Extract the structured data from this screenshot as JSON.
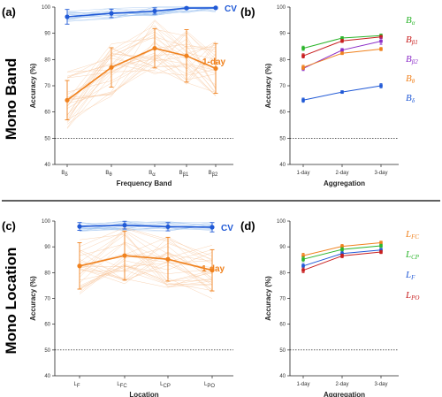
{
  "figure": {
    "row_titles": [
      "Mono Band",
      "Mono Location"
    ],
    "colors": {
      "cv": "#2059d6",
      "one_day": "#f0821e",
      "refline": "#000000",
      "divider": "#000000"
    }
  },
  "chart_data": [
    {
      "panel": "a",
      "panel_label": "(a)",
      "type": "line",
      "xlabel": "Frequency Band",
      "ylabel": "Accuracy (%)",
      "ylim": [
        40,
        100
      ],
      "yticks": [
        40,
        50,
        60,
        70,
        80,
        90,
        100
      ],
      "reference_line": 50,
      "categories": [
        {
          "main": "B",
          "sub": "δ"
        },
        {
          "main": "B",
          "sub": "θ"
        },
        {
          "main": "B",
          "sub": "α"
        },
        {
          "main": "B",
          "sub": "β1"
        },
        {
          "main": "B",
          "sub": "β2"
        }
      ],
      "series": [
        {
          "name": "CV",
          "color": "#2059d6",
          "values": [
            96.3,
            97.6,
            98.5,
            99.6,
            99.7
          ],
          "err": [
            2.8,
            1.6,
            1.2,
            0.4,
            0.3
          ]
        },
        {
          "name": "1-day",
          "color": "#f0821e",
          "values": [
            64.5,
            77.0,
            84.3,
            81.4,
            76.6
          ],
          "err": [
            7.5,
            7.5,
            7.5,
            10.0,
            9.5
          ]
        }
      ]
    },
    {
      "panel": "b",
      "panel_label": "(b)",
      "type": "line",
      "xlabel": "Aggregation",
      "ylabel": "Accuracy (%)",
      "ylim": [
        40,
        100
      ],
      "yticks": [
        40,
        50,
        60,
        70,
        80,
        90,
        100
      ],
      "reference_line": 50,
      "categories": [
        "1-day",
        "2-day",
        "3-day"
      ],
      "series": [
        {
          "name": "Bα",
          "main": "B",
          "sub": "α",
          "color": "#2cb52c",
          "values": [
            84.3,
            88.2,
            89.1
          ],
          "err": [
            0.8,
            0.5,
            0.6
          ]
        },
        {
          "name": "Bβ1",
          "main": "B",
          "sub": "β1",
          "color": "#c81e1e",
          "values": [
            81.4,
            87.1,
            88.6
          ],
          "err": [
            0.8,
            0.6,
            0.6
          ]
        },
        {
          "name": "Bβ2",
          "main": "B",
          "sub": "β2",
          "color": "#8c2ec8",
          "values": [
            76.6,
            83.6,
            87.0
          ],
          "err": [
            0.8,
            0.6,
            1.2
          ]
        },
        {
          "name": "Bθ",
          "main": "B",
          "sub": "θ",
          "color": "#f0821e",
          "values": [
            77.0,
            82.4,
            84.0
          ],
          "err": [
            0.8,
            0.5,
            0.6
          ]
        },
        {
          "name": "Bδ",
          "main": "B",
          "sub": "δ",
          "color": "#2059d6",
          "values": [
            64.5,
            67.6,
            70.0
          ],
          "err": [
            0.8,
            0.5,
            0.8
          ]
        }
      ]
    },
    {
      "panel": "c",
      "panel_label": "(c)",
      "type": "line",
      "xlabel": "Location",
      "ylabel": "Accuracy (%)",
      "ylim": [
        40,
        100
      ],
      "yticks": [
        40,
        50,
        60,
        70,
        80,
        90,
        100
      ],
      "reference_line": 50,
      "categories": [
        {
          "main": "L",
          "sub": "F"
        },
        {
          "main": "L",
          "sub": "FC"
        },
        {
          "main": "L",
          "sub": "CP"
        },
        {
          "main": "L",
          "sub": "PO"
        }
      ],
      "series": [
        {
          "name": "CV",
          "color": "#2059d6",
          "values": [
            97.9,
            98.4,
            97.8,
            97.6
          ],
          "err": [
            1.5,
            1.5,
            1.6,
            1.8
          ]
        },
        {
          "name": "1-day",
          "color": "#f0821e",
          "values": [
            82.6,
            86.6,
            85.2,
            80.9
          ],
          "err": [
            9.0,
            9.5,
            8.5,
            8.0
          ]
        }
      ]
    },
    {
      "panel": "d",
      "panel_label": "(d)",
      "type": "line",
      "xlabel": "Aggregation",
      "ylabel": "Accuracy (%)",
      "ylim": [
        40,
        100
      ],
      "yticks": [
        40,
        50,
        60,
        70,
        80,
        90,
        100
      ],
      "reference_line": 50,
      "categories": [
        "1-day",
        "2-day",
        "3-day"
      ],
      "series": [
        {
          "name": "LFC",
          "main": "L",
          "sub": "FC",
          "color": "#f0821e",
          "values": [
            86.6,
            90.2,
            91.6
          ],
          "err": [
            0.9,
            0.7,
            0.6
          ]
        },
        {
          "name": "LCP",
          "main": "L",
          "sub": "CP",
          "color": "#2cb52c",
          "values": [
            85.2,
            89.0,
            90.4
          ],
          "err": [
            0.9,
            0.7,
            0.6
          ]
        },
        {
          "name": "LF",
          "main": "L",
          "sub": "F",
          "color": "#2059d6",
          "values": [
            82.6,
            87.4,
            88.8
          ],
          "err": [
            0.9,
            0.7,
            0.6
          ]
        },
        {
          "name": "LPO",
          "main": "L",
          "sub": "PO",
          "color": "#c81e1e",
          "values": [
            80.9,
            86.5,
            88.0
          ],
          "err": [
            0.9,
            0.7,
            0.6
          ]
        }
      ]
    }
  ]
}
